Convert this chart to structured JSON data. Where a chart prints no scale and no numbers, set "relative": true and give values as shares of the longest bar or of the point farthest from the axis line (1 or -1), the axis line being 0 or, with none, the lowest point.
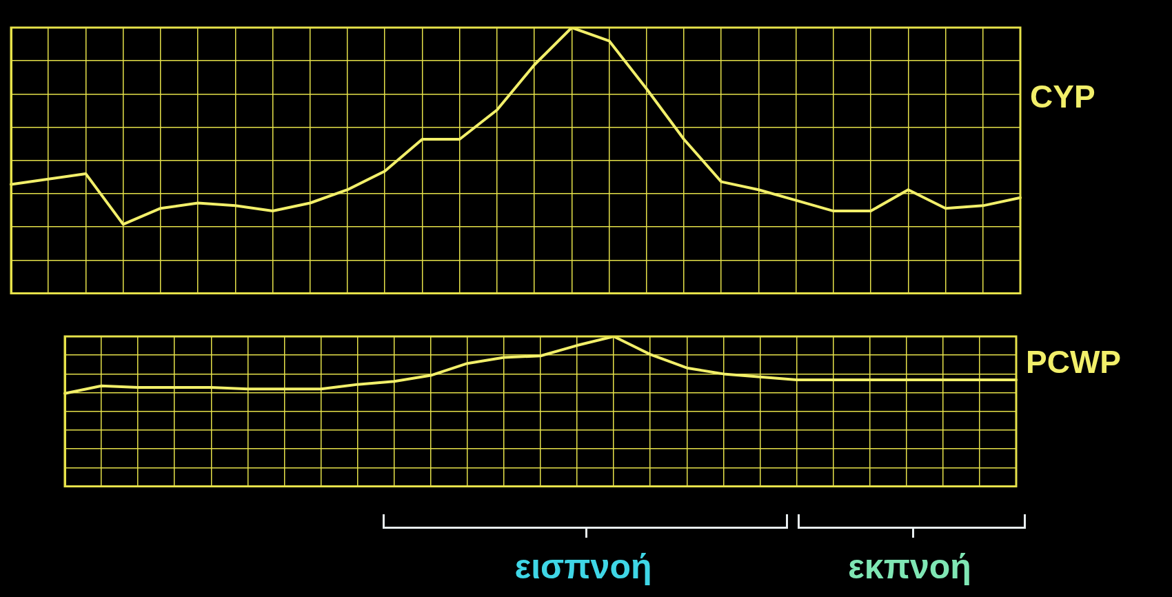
{
  "chart_data": [
    {
      "type": "line",
      "relative": true,
      "grid": true,
      "marker": "none",
      "legend": false,
      "categories": [
        null,
        null,
        null,
        null,
        null,
        null,
        null,
        null,
        null,
        null,
        null,
        null,
        null,
        null,
        null,
        null,
        null,
        null,
        null,
        null,
        null,
        null,
        null,
        null,
        null,
        null,
        null,
        null
      ],
      "series": [
        {
          "name": "CYP",
          "color": "#f2ef6a",
          "values": [
            0.41,
            0.43,
            0.45,
            0.26,
            0.32,
            0.34,
            0.33,
            0.31,
            0.34,
            0.39,
            0.46,
            0.58,
            0.58,
            0.69,
            0.86,
            1,
            0.95,
            0.77,
            0.58,
            0.42,
            0.39,
            0.35,
            0.31,
            0.31,
            0.39,
            0.32,
            0.33,
            0.36
          ]
        }
      ]
    },
    {
      "type": "line",
      "relative": true,
      "grid": true,
      "marker": "none",
      "legend": false,
      "categories": [
        null,
        null,
        null,
        null,
        null,
        null,
        null,
        null,
        null,
        null,
        null,
        null,
        null,
        null,
        null,
        null,
        null,
        null,
        null,
        null,
        null,
        null,
        null,
        null,
        null,
        null,
        null
      ],
      "series": [
        {
          "name": "PCWP",
          "color": "#f2ef6a",
          "values": [
            0.62,
            0.67,
            0.66,
            0.66,
            0.66,
            0.65,
            0.65,
            0.65,
            0.68,
            0.7,
            0.74,
            0.82,
            0.86,
            0.87,
            0.94,
            1,
            0.88,
            0.79,
            0.75,
            0.73,
            0.71,
            0.71,
            0.71,
            0.71,
            0.71,
            0.71,
            0.71
          ]
        }
      ],
      "annotations": [
        "εισπνοή",
        "εκπνοή"
      ]
    }
  ]
}
